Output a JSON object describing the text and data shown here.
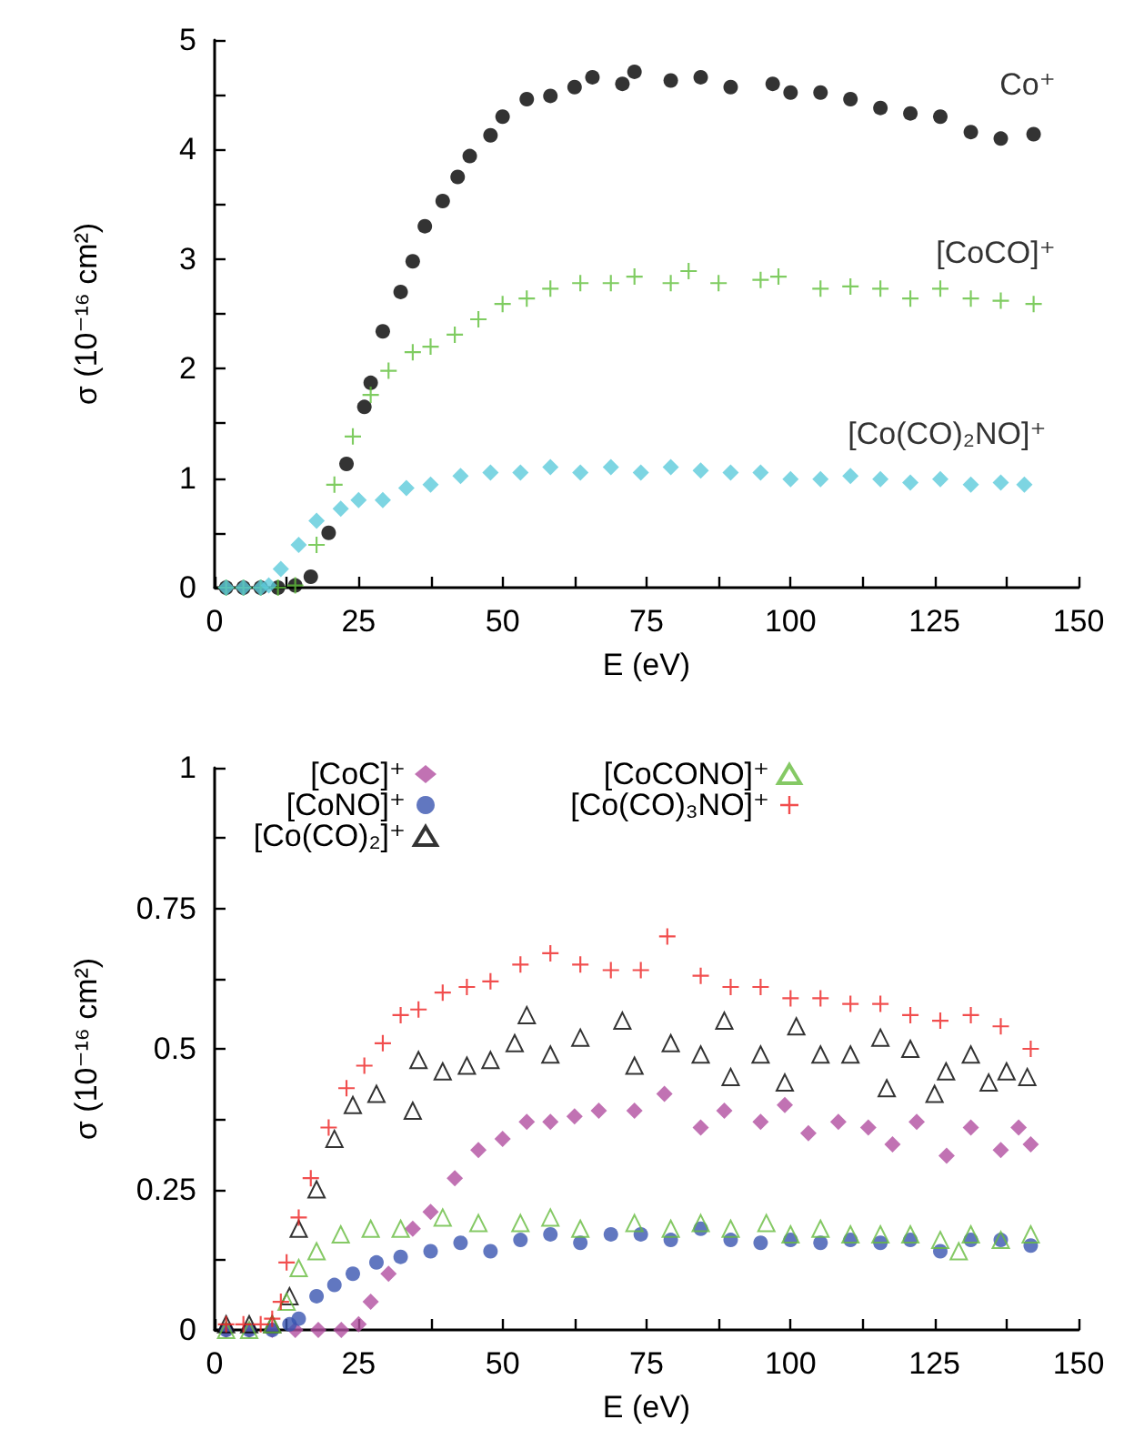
{
  "chart_data": [
    {
      "type": "scatter",
      "xlabel": "E (eV)",
      "ylabel": "σ (10⁻¹⁶ cm²)",
      "xlim": [
        0,
        150
      ],
      "ylim": [
        0,
        5
      ],
      "xticks": [
        0,
        {
          "value": 12.5,
          "label": null
        },
        25,
        {
          "value": 37.5,
          "label": null
        },
        50,
        {
          "value": 62.5,
          "label": null
        },
        75,
        {
          "value": 87.5,
          "label": null
        },
        100,
        {
          "value": 112.5,
          "label": null
        },
        125,
        {
          "value": 137.5,
          "label": null
        },
        150
      ],
      "yticks": [
        0,
        {
          "value": 0.5,
          "label": null
        },
        1,
        {
          "value": 1.5,
          "label": null
        },
        2,
        {
          "value": 2.5,
          "label": null
        },
        3,
        {
          "value": 3.5,
          "label": null
        },
        4,
        {
          "value": 4.5,
          "label": null
        },
        5
      ],
      "grid": false,
      "legend": false,
      "series": [
        {
          "name": "Co⁺",
          "color": "#000000",
          "marker": "circle",
          "x": [
            2,
            5,
            8,
            11,
            14,
            16.7,
            19.8,
            22.9,
            26,
            27.1,
            29.2,
            32.3,
            34.4,
            36.5,
            39.6,
            42.2,
            44.3,
            47.9,
            50,
            54.2,
            58.3,
            62.5,
            65.6,
            70.8,
            72.9,
            79.2,
            84.4,
            89.6,
            96.9,
            100,
            105.2,
            110.4,
            115.6,
            120.8,
            126,
            131.3,
            136.5,
            142.2
          ],
          "values": [
            0,
            0,
            0,
            0,
            0.02,
            0.1,
            0.5,
            1.13,
            1.65,
            1.87,
            2.34,
            2.7,
            2.98,
            3.3,
            3.53,
            3.75,
            3.94,
            4.13,
            4.3,
            4.46,
            4.49,
            4.57,
            4.66,
            4.6,
            4.71,
            4.63,
            4.66,
            4.57,
            4.6,
            4.52,
            4.52,
            4.46,
            4.38,
            4.33,
            4.3,
            4.16,
            4.1,
            4.14
          ]
        },
        {
          "name": "[CoCO]⁺",
          "color": "#5fbf3a",
          "marker": "cross",
          "x": [
            2,
            5,
            8,
            11,
            14,
            17.7,
            20.8,
            24,
            27.1,
            30.2,
            34.4,
            37.5,
            41.7,
            45.8,
            50,
            54.2,
            58.3,
            63.5,
            68.8,
            72.9,
            79.2,
            82.3,
            87.5,
            94.8,
            97.9,
            105.2,
            110.4,
            115.6,
            120.8,
            126,
            131.3,
            136.5,
            142.2
          ],
          "values": [
            0,
            0,
            0,
            0,
            0.02,
            0.39,
            0.94,
            1.38,
            1.76,
            1.98,
            2.15,
            2.2,
            2.31,
            2.45,
            2.59,
            2.64,
            2.73,
            2.78,
            2.78,
            2.84,
            2.78,
            2.89,
            2.78,
            2.81,
            2.84,
            2.73,
            2.75,
            2.73,
            2.64,
            2.73,
            2.64,
            2.62,
            2.59
          ]
        },
        {
          "name": "[Co(CO)₂NO]⁺",
          "color": "#5ccbdb",
          "marker": "diamond",
          "x": [
            2,
            5,
            8,
            9.4,
            11.5,
            14.6,
            17.7,
            21.9,
            25,
            29.2,
            33.3,
            37.5,
            42.7,
            47.9,
            53.1,
            58.3,
            63.5,
            68.8,
            74,
            79.2,
            84.4,
            89.6,
            94.8,
            100,
            105.2,
            110.4,
            115.6,
            120.8,
            126,
            131.3,
            136.5,
            140.6
          ],
          "values": [
            0,
            0,
            0,
            0.02,
            0.17,
            0.39,
            0.61,
            0.72,
            0.8,
            0.8,
            0.91,
            0.94,
            1.02,
            1.05,
            1.05,
            1.1,
            1.05,
            1.1,
            1.05,
            1.1,
            1.07,
            1.05,
            1.05,
            0.99,
            0.99,
            1.02,
            0.99,
            0.96,
            0.99,
            0.94,
            0.96,
            0.94
          ]
        }
      ]
    },
    {
      "type": "scatter",
      "xlabel": "E (eV)",
      "ylabel": "σ (10⁻¹⁶ cm²)",
      "xlim": [
        0,
        150
      ],
      "ylim": [
        0,
        1
      ],
      "xticks": [
        0,
        {
          "value": 12.5,
          "label": null
        },
        25,
        {
          "value": 37.5,
          "label": null
        },
        50,
        {
          "value": 62.5,
          "label": null
        },
        75,
        {
          "value": 87.5,
          "label": null
        },
        100,
        {
          "value": 112.5,
          "label": null
        },
        125,
        {
          "value": 137.5,
          "label": null
        },
        150
      ],
      "yticks": [
        0,
        {
          "value": 0.125,
          "label": null
        },
        0.25,
        {
          "value": 0.375,
          "label": null
        },
        0.5,
        {
          "value": 0.625,
          "label": null
        },
        0.75,
        {
          "value": 0.875,
          "label": null
        },
        1
      ],
      "grid": false,
      "legend": "top left",
      "series": [
        {
          "name": "[CoC]⁺",
          "color": "#b24fa0",
          "marker": "diamond",
          "x": [
            2,
            6,
            10,
            14,
            18,
            22,
            25,
            27.1,
            30.2,
            34.4,
            37.5,
            41.7,
            45.8,
            50,
            54.2,
            58.3,
            62.5,
            66.7,
            72.9,
            78.1,
            84.4,
            88.5,
            94.8,
            99,
            103.1,
            108.3,
            113.5,
            117.7,
            121.9,
            127.1,
            131.3,
            136.5,
            139.6,
            141.7
          ],
          "values": [
            0,
            0,
            0,
            0,
            0,
            0,
            0.01,
            0.05,
            0.1,
            0.18,
            0.21,
            0.27,
            0.32,
            0.34,
            0.37,
            0.37,
            0.38,
            0.39,
            0.39,
            0.42,
            0.36,
            0.39,
            0.37,
            0.4,
            0.35,
            0.37,
            0.36,
            0.33,
            0.37,
            0.31,
            0.36,
            0.32,
            0.36,
            0.33
          ]
        },
        {
          "name": "[CoNO]⁺",
          "color": "#3a55b0",
          "marker": "circle",
          "x": [
            2,
            6,
            10,
            13,
            14.6,
            17.7,
            20.8,
            24,
            28.1,
            32.3,
            37.5,
            42.7,
            47.9,
            53.1,
            58.3,
            63.5,
            68.8,
            74,
            79.2,
            84.4,
            89.6,
            94.8,
            100,
            105.2,
            110.4,
            115.6,
            120.8,
            126,
            131.3,
            136.5,
            141.7
          ],
          "values": [
            0,
            0,
            0,
            0.01,
            0.02,
            0.06,
            0.08,
            0.1,
            0.12,
            0.13,
            0.14,
            0.155,
            0.14,
            0.16,
            0.17,
            0.155,
            0.17,
            0.17,
            0.16,
            0.18,
            0.16,
            0.155,
            0.16,
            0.155,
            0.16,
            0.155,
            0.16,
            0.14,
            0.16,
            0.16,
            0.15
          ]
        },
        {
          "name": "[Co(CO)₂]⁺",
          "color": "#000000",
          "marker": "triangle",
          "x": [
            2,
            6,
            10,
            13,
            14.6,
            17.7,
            20.8,
            24,
            28.1,
            34.4,
            35.4,
            39.6,
            43.8,
            47.9,
            52.1,
            54.2,
            58.3,
            63.5,
            70.8,
            72.9,
            79.2,
            84.4,
            88.5,
            89.6,
            94.8,
            99,
            101,
            105.2,
            110.4,
            115.6,
            116.7,
            120.8,
            125,
            127,
            131.3,
            134.4,
            137.5,
            141.1
          ],
          "values": [
            0.01,
            0.01,
            0.01,
            0.06,
            0.18,
            0.25,
            0.34,
            0.4,
            0.42,
            0.39,
            0.48,
            0.46,
            0.47,
            0.48,
            0.51,
            0.56,
            0.49,
            0.52,
            0.55,
            0.47,
            0.51,
            0.49,
            0.55,
            0.45,
            0.49,
            0.44,
            0.54,
            0.49,
            0.49,
            0.52,
            0.43,
            0.5,
            0.42,
            0.46,
            0.49,
            0.44,
            0.46,
            0.45
          ]
        },
        {
          "name": "[CoCONO]⁺",
          "color": "#66bb3f",
          "marker": "triangle",
          "x": [
            2,
            6,
            10,
            12.5,
            14.6,
            17.7,
            21.9,
            27.1,
            32.3,
            39.6,
            45.8,
            53.1,
            58.3,
            63.5,
            72.9,
            79.2,
            84.4,
            89.6,
            95.8,
            100,
            105.2,
            110.4,
            115.6,
            120.8,
            126,
            129.2,
            131.3,
            136.5,
            141.7
          ],
          "values": [
            0,
            0,
            0.01,
            0.05,
            0.11,
            0.14,
            0.17,
            0.18,
            0.18,
            0.2,
            0.19,
            0.19,
            0.2,
            0.18,
            0.19,
            0.18,
            0.19,
            0.18,
            0.19,
            0.17,
            0.18,
            0.17,
            0.17,
            0.17,
            0.16,
            0.14,
            0.17,
            0.16,
            0.17
          ]
        },
        {
          "name": "[Co(CO)₃NO]⁺",
          "color": "#ee2222",
          "marker": "cross",
          "x": [
            2,
            5,
            8,
            10,
            11.5,
            12.5,
            14.6,
            16.7,
            19.8,
            22.9,
            26,
            29.2,
            32.3,
            35.4,
            39.6,
            43.8,
            47.9,
            53.1,
            58.3,
            63.5,
            68.8,
            74,
            78.6,
            84.4,
            89.6,
            94.8,
            100,
            105.2,
            110.4,
            115.6,
            120.8,
            126,
            131.3,
            136.5,
            141.7
          ],
          "values": [
            0.01,
            0.01,
            0.01,
            0.02,
            0.05,
            0.12,
            0.2,
            0.27,
            0.36,
            0.43,
            0.47,
            0.51,
            0.56,
            0.57,
            0.6,
            0.61,
            0.62,
            0.65,
            0.67,
            0.65,
            0.64,
            0.64,
            0.7,
            0.63,
            0.61,
            0.61,
            0.59,
            0.59,
            0.58,
            0.58,
            0.56,
            0.55,
            0.56,
            0.54,
            0.5
          ]
        }
      ]
    }
  ]
}
